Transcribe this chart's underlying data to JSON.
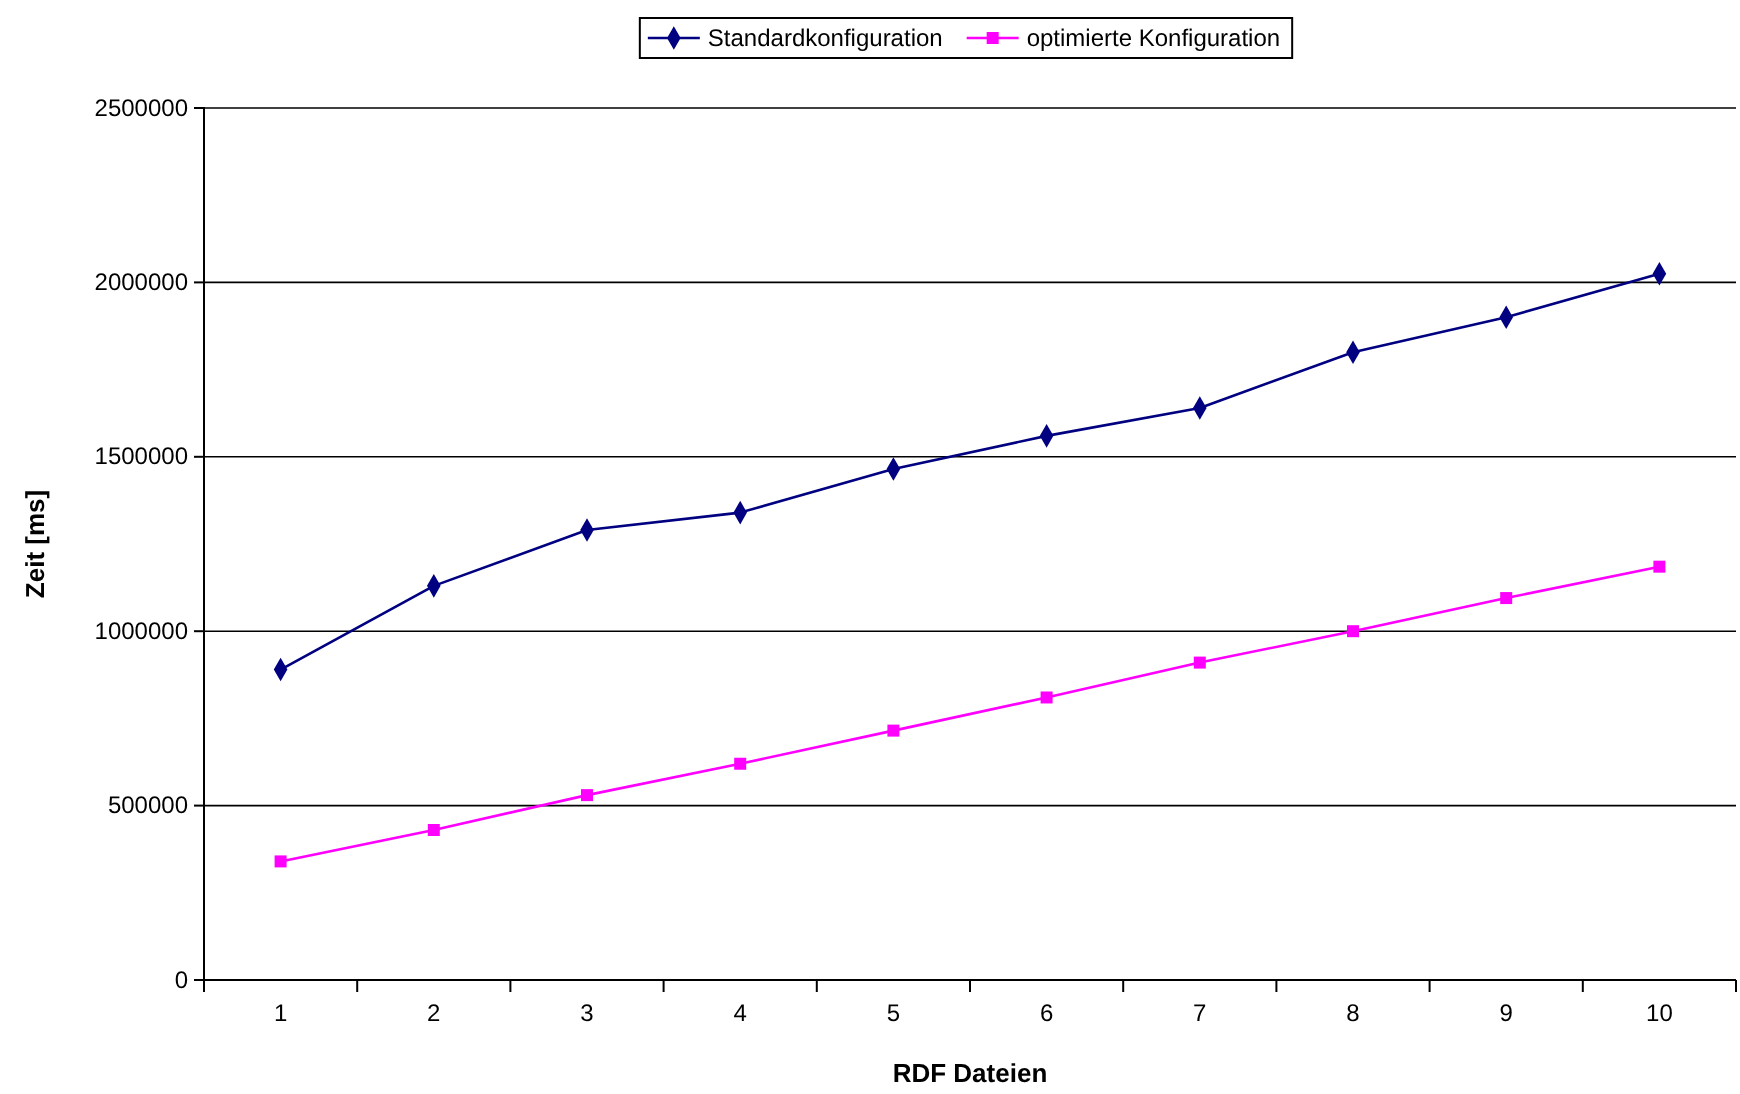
{
  "chart_data": {
    "type": "line",
    "xlabel": "RDF Dateien",
    "ylabel": "Zeit [ms]",
    "categories": [
      "1",
      "2",
      "3",
      "4",
      "5",
      "6",
      "7",
      "8",
      "9",
      "10"
    ],
    "series": [
      {
        "name": "Standardkonfiguration",
        "color": "#000080",
        "marker": "diamond",
        "values": [
          890000,
          1130000,
          1290000,
          1340000,
          1465000,
          1560000,
          1640000,
          1800000,
          1900000,
          2025000
        ]
      },
      {
        "name": "optimierte Konfiguration",
        "color": "#ff00ff",
        "marker": "square",
        "values": [
          340000,
          430000,
          530000,
          620000,
          715000,
          810000,
          910000,
          1000000,
          1095000,
          1185000
        ]
      }
    ],
    "ylim": [
      0,
      2500000
    ],
    "yticks": [
      0,
      500000,
      1000000,
      1500000,
      2000000,
      2500000
    ],
    "grid": "y",
    "legend": "top",
    "line_style": "solid"
  }
}
